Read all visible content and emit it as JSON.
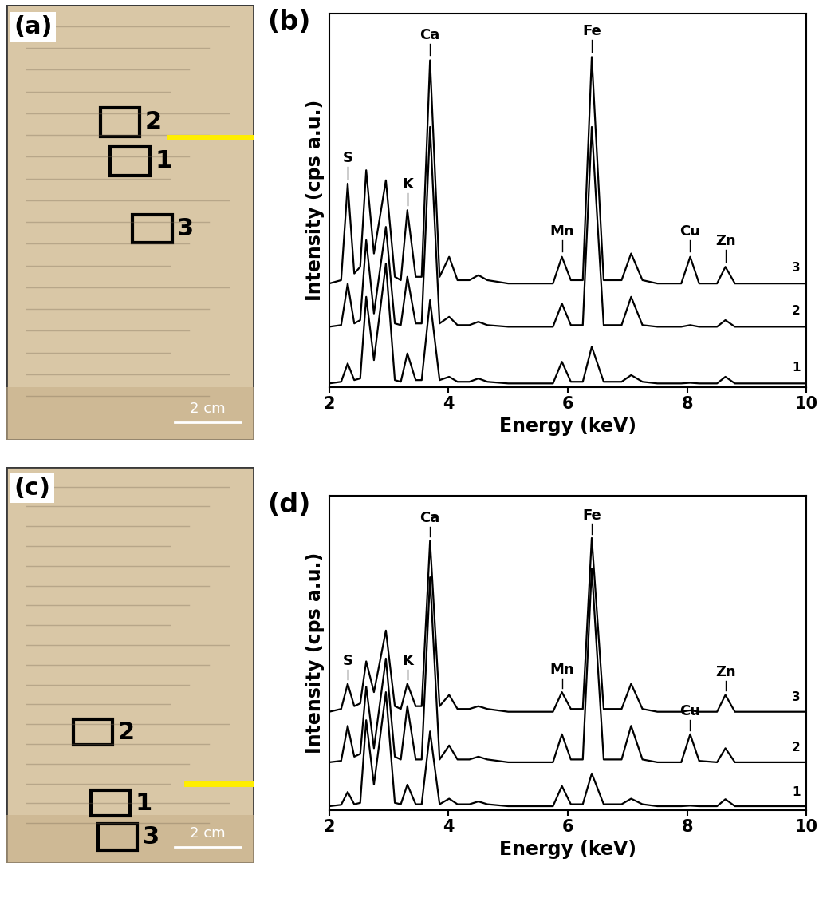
{
  "chart_data": [
    {
      "type": "line",
      "panel_label": "(b)",
      "x_label": "Energy (keV)",
      "y_label": "Intensity (cps a.u.)",
      "xlim": [
        2,
        10
      ],
      "xticks": [
        2,
        4,
        6,
        8,
        10
      ],
      "ylim": [
        0,
        112
      ],
      "yticks": [],
      "tick_labels": "x",
      "x": [
        2.0,
        2.2,
        2.31,
        2.42,
        2.52,
        2.62,
        2.75,
        2.95,
        3.1,
        3.2,
        3.31,
        3.45,
        3.55,
        3.69,
        3.85,
        4.01,
        4.15,
        4.35,
        4.5,
        4.65,
        5.0,
        5.75,
        5.9,
        6.05,
        6.25,
        6.4,
        6.6,
        6.9,
        7.06,
        7.25,
        7.5,
        7.9,
        8.05,
        8.2,
        8.5,
        8.64,
        8.8,
        9.5,
        10.0
      ],
      "series": [
        {
          "name": "1",
          "color": "#000000",
          "values": [
            1,
            1.5,
            7,
            2,
            2.5,
            27,
            8,
            37,
            2,
            1.5,
            10,
            2,
            2,
            26,
            2,
            3,
            1.5,
            1.5,
            2.5,
            1.5,
            1,
            1,
            7.5,
            1.5,
            1.5,
            12,
            1.5,
            1.5,
            3.5,
            1.5,
            1,
            1,
            1.2,
            1,
            1,
            3,
            1,
            1,
            1
          ]
        },
        {
          "name": "2",
          "color": "#000000",
          "values": [
            18,
            18.5,
            31,
            19,
            20,
            44,
            22,
            48,
            19,
            18.5,
            33,
            19,
            19,
            78,
            19,
            21,
            18.5,
            18.5,
            19.5,
            18.5,
            18,
            18,
            25,
            18.5,
            18.5,
            78,
            18.5,
            18.5,
            27,
            18.5,
            18,
            18,
            18.5,
            18,
            18,
            20,
            18,
            18,
            18
          ]
        },
        {
          "name": "3",
          "color": "#000000",
          "values": [
            31,
            32,
            61,
            34,
            36,
            65,
            40,
            62,
            33,
            32,
            53,
            33,
            33,
            98,
            33,
            39,
            32,
            32,
            33.5,
            32,
            31,
            31,
            39,
            32,
            32,
            99,
            32,
            32,
            40,
            32,
            31,
            31,
            39,
            31,
            31,
            36,
            31,
            31,
            31
          ]
        }
      ],
      "annotations": [
        {
          "text": "S",
          "x": 2.31,
          "series": "3"
        },
        {
          "text": "K",
          "x": 3.31,
          "series": "3"
        },
        {
          "text": "Ca",
          "x": 3.69,
          "series": "3"
        },
        {
          "text": "Mn",
          "x": 5.9,
          "series": "3"
        },
        {
          "text": "Fe",
          "x": 6.4,
          "series": "3"
        },
        {
          "text": "Cu",
          "x": 8.05,
          "series": "3"
        },
        {
          "text": "Zn",
          "x": 8.64,
          "series": "3"
        }
      ]
    },
    {
      "type": "line",
      "panel_label": "(d)",
      "x_label": "Energy (keV)",
      "y_label": "Intensity (cps a.u.)",
      "xlim": [
        2,
        10
      ],
      "xticks": [
        2,
        4,
        6,
        8,
        10
      ],
      "ylim": [
        0,
        112
      ],
      "yticks": [],
      "tick_labels": "x",
      "x": [
        2.0,
        2.2,
        2.31,
        2.42,
        2.52,
        2.62,
        2.75,
        2.95,
        3.1,
        3.2,
        3.31,
        3.45,
        3.55,
        3.69,
        3.85,
        4.01,
        4.15,
        4.35,
        4.5,
        4.65,
        5.0,
        5.75,
        5.9,
        6.05,
        6.25,
        6.4,
        6.6,
        6.9,
        7.06,
        7.25,
        7.5,
        7.9,
        8.05,
        8.2,
        8.5,
        8.64,
        8.8,
        9.5,
        10.0
      ],
      "series": [
        {
          "name": "1",
          "color": "#000000",
          "values": [
            1.3,
            1.8,
            6.4,
            2,
            2.5,
            32,
            9,
            42,
            2.5,
            2,
            9,
            2,
            2,
            28,
            2,
            4,
            2,
            2,
            3,
            2,
            1.3,
            1.3,
            8.5,
            2,
            2,
            13,
            2,
            2,
            4,
            2,
            1.3,
            1.3,
            1.5,
            1.3,
            1.3,
            3.8,
            1.3,
            1.3,
            1.3
          ]
        },
        {
          "name": "2",
          "color": "#000000",
          "values": [
            17,
            17.5,
            30,
            19,
            20,
            44,
            22,
            54,
            19,
            18,
            37,
            18,
            18,
            83,
            18,
            23,
            18,
            18,
            19,
            18,
            17,
            17,
            27,
            18,
            18,
            86,
            18,
            18,
            30,
            18,
            17,
            17,
            27,
            17.5,
            17,
            22,
            17,
            17,
            17
          ]
        },
        {
          "name": "3",
          "color": "#000000",
          "values": [
            35,
            36,
            45,
            37,
            38,
            53,
            42,
            64,
            37,
            36,
            45,
            37,
            37,
            96,
            37,
            41,
            36,
            36,
            37,
            36,
            35,
            35,
            42,
            36,
            36,
            97,
            36,
            36,
            45,
            36,
            35,
            35,
            35.5,
            35,
            35,
            41,
            35,
            35,
            35
          ]
        }
      ],
      "annotations": [
        {
          "text": "S",
          "x": 2.31,
          "series": "3"
        },
        {
          "text": "K",
          "x": 3.31,
          "series": "3"
        },
        {
          "text": "Ca",
          "x": 3.69,
          "series": "3"
        },
        {
          "text": "Mn",
          "x": 5.9,
          "series": "3"
        },
        {
          "text": "Fe",
          "x": 6.4,
          "series": "3"
        },
        {
          "text": "Cu",
          "x": 8.05,
          "series": "2"
        },
        {
          "text": "Zn",
          "x": 8.64,
          "series": "3"
        }
      ]
    }
  ],
  "images": [
    {
      "panel_label": "(a)",
      "regions": [
        "1",
        "2",
        "3"
      ],
      "scale_bar": "2 cm"
    },
    {
      "panel_label": "(c)",
      "regions": [
        "1",
        "2",
        "3"
      ],
      "scale_bar": "2 cm"
    }
  ]
}
